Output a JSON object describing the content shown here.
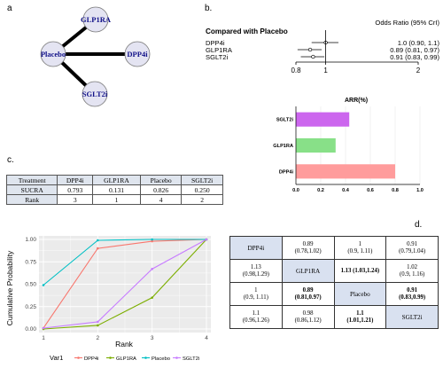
{
  "panels": {
    "a": "a",
    "b": "b.",
    "c": "c.",
    "d": "d."
  },
  "network": {
    "nodes": [
      {
        "id": "glp1ra",
        "label": "GLP1RA"
      },
      {
        "id": "placebo",
        "label": "Placebo"
      },
      {
        "id": "dpp4i",
        "label": "DPP4i"
      },
      {
        "id": "sglt2i",
        "label": "SGLT2i"
      }
    ]
  },
  "forest": {
    "header_left": "Compared with Placebo",
    "header_right": "Odds Ratio (95% CrI)",
    "rows": [
      {
        "label": "DPP4i",
        "or": 1.0,
        "lo": 0.9,
        "hi": 1.1,
        "text": "1.0 (0.90, 1.1)"
      },
      {
        "label": "GLP1RA",
        "or": 0.89,
        "lo": 0.81,
        "hi": 0.97,
        "text": "0.89 (0.81, 0.97)"
      },
      {
        "label": "SGLT2i",
        "or": 0.91,
        "lo": 0.83,
        "hi": 0.99,
        "text": "0.91 (0.83, 0.99)"
      }
    ],
    "ticks": [
      "0.8",
      "1",
      "2"
    ]
  },
  "chart_data": [
    {
      "type": "bar",
      "orientation": "horizontal",
      "title": "ARR(%)",
      "categories": [
        "SGLT2i",
        "GLP1RA",
        "DPP4i"
      ],
      "values": [
        0.43,
        0.32,
        0.8
      ],
      "colors": [
        "#cc66ee",
        "#88e088",
        "#ff9c9c"
      ],
      "xlim": [
        0,
        1.0
      ],
      "xticks": [
        "0.0",
        "0.2",
        "0.4",
        "0.6",
        "0.8",
        "1.0"
      ]
    },
    {
      "type": "line",
      "xlabel": "Rank",
      "ylabel": "Cumulative Probability",
      "x": [
        1,
        2,
        3,
        4
      ],
      "ylim": [
        0,
        1
      ],
      "yticks": [
        "0.00",
        "0.25",
        "0.50",
        "0.75",
        "1.00"
      ],
      "legend_title": "Var1",
      "legend_position": "bottom",
      "series": [
        {
          "name": "DPP4i",
          "color": "#f8766d",
          "values": [
            0.01,
            0.9,
            0.98,
            1.0
          ]
        },
        {
          "name": "GLP1RA",
          "color": "#7cae00",
          "values": [
            0.0,
            0.04,
            0.35,
            1.0
          ]
        },
        {
          "name": "Placebo",
          "color": "#00bfc4",
          "values": [
            0.49,
            0.99,
            1.0,
            1.0
          ]
        },
        {
          "name": "SGLT2i",
          "color": "#c77cff",
          "values": [
            0.01,
            0.08,
            0.67,
            1.0
          ]
        }
      ]
    }
  ],
  "sucra_table": {
    "header": [
      "Treatment",
      "DPP4i",
      "GLP1RA",
      "Placebo",
      "SGLT2i"
    ],
    "rows": [
      [
        "SUCRA",
        "0.793",
        "0.131",
        "0.826",
        "0.250"
      ],
      [
        "Rank",
        "3",
        "1",
        "4",
        "2"
      ]
    ]
  },
  "league_table": {
    "rows": [
      [
        {
          "l1": "DPP4i",
          "l2": "",
          "diag": true
        },
        {
          "l1": "0.89",
          "l2": "(0.78,1.02)"
        },
        {
          "l1": "1",
          "l2": "(0.9, 1.11)"
        },
        {
          "l1": "0.91",
          "l2": "(0.79,1.04)"
        }
      ],
      [
        {
          "l1": "1.13",
          "l2": "(0.98,1.29)"
        },
        {
          "l1": "GLP1RA",
          "l2": "",
          "diag": true
        },
        {
          "l1": "1.13 (1.03,1.24)",
          "l2": "",
          "bold": true
        },
        {
          "l1": "1.02",
          "l2": "(0.9, 1.16)"
        }
      ],
      [
        {
          "l1": "1",
          "l2": "(0.9, 1.11)"
        },
        {
          "l1": "0.89",
          "l2": "(0.81,0.97)",
          "bold": true
        },
        {
          "l1": "Placebo",
          "l2": "",
          "diag": true
        },
        {
          "l1": "0.91",
          "l2": "(0.83,0.99)",
          "bold": true
        }
      ],
      [
        {
          "l1": "1.1",
          "l2": "(0.96,1.26)"
        },
        {
          "l1": "0.98",
          "l2": "(0.86,1.12)"
        },
        {
          "l1": "1.1",
          "l2": "(1.01,1.21)",
          "bold": true
        },
        {
          "l1": "SGLT2i",
          "l2": "",
          "diag": true
        }
      ]
    ]
  }
}
